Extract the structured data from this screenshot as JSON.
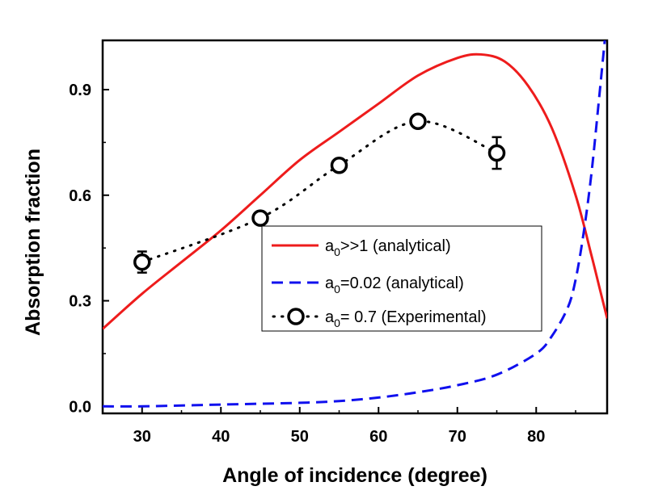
{
  "chart_data": {
    "type": "line",
    "title": "",
    "xlabel": "Angle of incidence (degree)",
    "ylabel": "Absorption fraction",
    "xlim": [
      25,
      89
    ],
    "ylim": [
      -0.02,
      1.04
    ],
    "xticks": [
      30,
      40,
      50,
      60,
      70,
      80
    ],
    "xtick_labels": [
      "30",
      "40",
      "50",
      "60",
      "70",
      "80"
    ],
    "yticks": [
      0.0,
      0.3,
      0.6,
      0.9
    ],
    "ytick_labels": [
      "0.0",
      "0.3",
      "0.6",
      "0.9"
    ],
    "legend_position": "center-right",
    "series": [
      {
        "name": "a0>>1 (analytical)",
        "legend_main": "a",
        "legend_sub": "0",
        "legend_rest": ">>1 (analytical)",
        "style": "solid",
        "color": "#ee1c1c",
        "x": [
          25,
          30,
          35,
          40,
          45,
          50,
          55,
          60,
          65,
          70,
          73,
          76,
          79,
          82,
          85,
          87,
          88,
          89
        ],
        "y": [
          0.22,
          0.32,
          0.41,
          0.5,
          0.6,
          0.7,
          0.78,
          0.86,
          0.94,
          0.99,
          1.0,
          0.98,
          0.91,
          0.79,
          0.6,
          0.43,
          0.34,
          0.25
        ]
      },
      {
        "name": "a0=0.02 (analytical)",
        "legend_main": "a",
        "legend_sub": "0",
        "legend_rest": "=0.02 (analytical)",
        "style": "dashed",
        "color": "#1010ee",
        "x": [
          25,
          30,
          40,
          50,
          55,
          60,
          65,
          70,
          75,
          80,
          82,
          84,
          85,
          86,
          87,
          88,
          88.7
        ],
        "y": [
          0.0,
          0.0,
          0.005,
          0.01,
          0.015,
          0.025,
          0.04,
          0.06,
          0.09,
          0.15,
          0.2,
          0.28,
          0.36,
          0.49,
          0.66,
          0.88,
          1.04
        ]
      },
      {
        "name": "a0= 0.7 (Experimental)",
        "legend_main": "a",
        "legend_sub": "0",
        "legend_rest": "= 0.7 (Experimental)",
        "style": "dotted-markers",
        "color": "#000000",
        "x": [
          30,
          45,
          55,
          65,
          75
        ],
        "y": [
          0.41,
          0.535,
          0.685,
          0.81,
          0.72
        ],
        "error": [
          0.03,
          0.01,
          0.015,
          0.015,
          0.045
        ]
      }
    ]
  }
}
